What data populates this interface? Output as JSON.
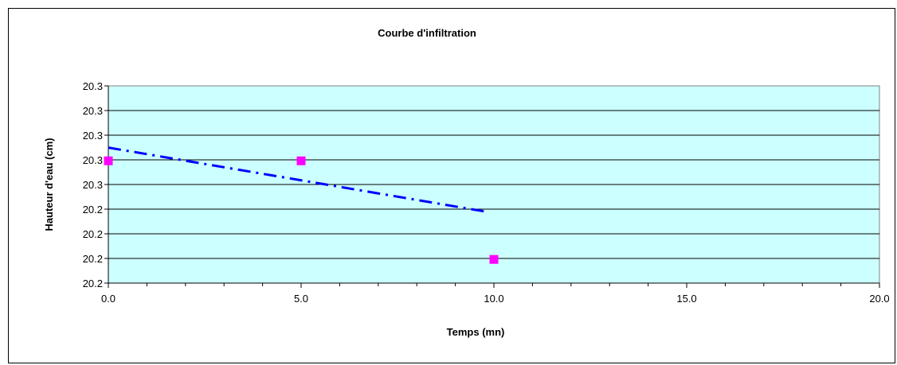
{
  "chart_data": {
    "type": "scatter",
    "title": "Courbe d'infiltration",
    "xlabel": "Temps (mn)",
    "ylabel": "Hauteur d'eau (cm)",
    "xlim": [
      0,
      20
    ],
    "ylim": [
      20.2,
      20.3
    ],
    "x_ticks": [
      0,
      5,
      10,
      15,
      20
    ],
    "x_tick_labels": [
      "0.0",
      "5.0",
      "10.0",
      "15.0",
      "20.0"
    ],
    "y_tick_labels": [
      "20.2",
      "20.2",
      "20.2",
      "20.2",
      "20.3",
      "20.3",
      "20.3",
      "20.3",
      "20.3"
    ],
    "grid": true,
    "legend": "none",
    "series": [
      {
        "points": [
          {
            "x": 0,
            "y": 20.262
          },
          {
            "x": 5,
            "y": 20.262
          },
          {
            "x": 10,
            "y": 20.212
          }
        ]
      }
    ],
    "trendline": {
      "style": "dash-dot",
      "start": {
        "x": 0,
        "y": 20.2687
      },
      "end": {
        "x": 9.8,
        "y": 20.2362
      }
    },
    "colors": {
      "plot_background": "#ccffff",
      "gridline": "#000000",
      "marker": "#ff00ff",
      "trendline": "#0000ff"
    }
  }
}
